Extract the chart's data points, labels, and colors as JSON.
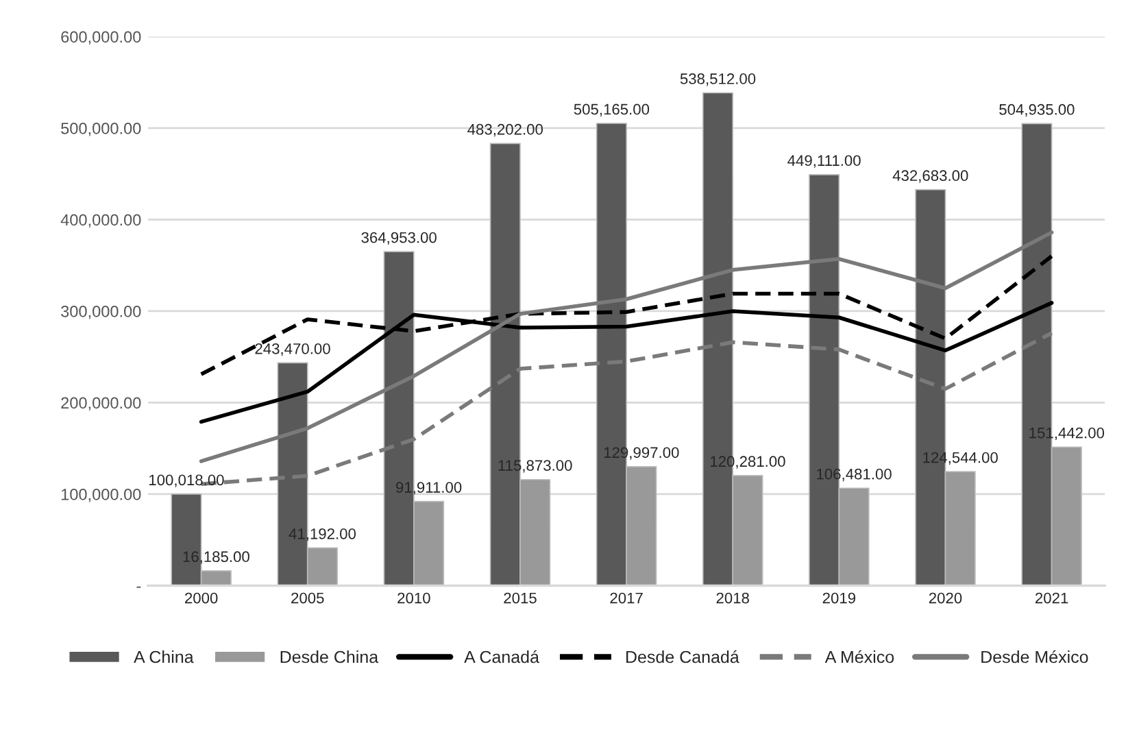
{
  "chart_data": {
    "type": "bar",
    "categories": [
      "2000",
      "2005",
      "2010",
      "2015",
      "2017",
      "2018",
      "2019",
      "2020",
      "2021"
    ],
    "series": [
      {
        "name": "A China",
        "type": "bar",
        "color": "#595959",
        "values": [
          100018,
          243470,
          364953,
          483202,
          505165,
          538512,
          449111,
          432683,
          504935
        ],
        "value_labels": [
          "100,018.00",
          "243,470.00",
          "364,953.00",
          "483,202.00",
          "505,165.00",
          "538,512.00",
          "449,111.00",
          "432,683.00",
          "504,935.00"
        ]
      },
      {
        "name": "Desde China",
        "type": "bar",
        "color": "#999999",
        "values": [
          16185,
          41192,
          91911,
          115873,
          129997,
          120281,
          106481,
          124544,
          151442
        ],
        "value_labels": [
          "16,185.00",
          "41,192.00",
          "91,911.00",
          "115,873.00",
          "129,997.00",
          "120,281.00",
          "106,481.00",
          "124,544.00",
          "151,442.00"
        ]
      },
      {
        "name": "A Canadá",
        "type": "line",
        "line_style": "solid",
        "color": "#000000",
        "values": [
          179000,
          212000,
          296000,
          282000,
          283000,
          300000,
          293000,
          257000,
          309000
        ]
      },
      {
        "name": "Desde Canadá",
        "type": "line",
        "line_style": "dashed",
        "color": "#000000",
        "values": [
          231000,
          291000,
          278000,
          297000,
          299000,
          319000,
          319000,
          270000,
          360000
        ]
      },
      {
        "name": "A México",
        "type": "line",
        "line_style": "dashed",
        "color": "#7a7a7a",
        "values": [
          111000,
          120000,
          160000,
          237000,
          245000,
          266000,
          258000,
          215000,
          276000
        ]
      },
      {
        "name": "Desde México",
        "type": "line",
        "line_style": "solid",
        "color": "#7a7a7a",
        "values": [
          136000,
          172000,
          229000,
          297000,
          313000,
          345000,
          357000,
          325000,
          386000
        ]
      }
    ],
    "ylim": [
      0,
      600000
    ],
    "yticks": [
      {
        "value": 0,
        "label": "-"
      },
      {
        "value": 100000,
        "label": "100,000.00"
      },
      {
        "value": 200000,
        "label": "200,000.00"
      },
      {
        "value": 300000,
        "label": "300,000.00"
      },
      {
        "value": 400000,
        "label": "400,000.00"
      },
      {
        "value": 500000,
        "label": "500,000.00"
      },
      {
        "value": 600000,
        "label": "600,000.00"
      }
    ],
    "grid": "y",
    "legend": "bottom",
    "marker": "none"
  }
}
